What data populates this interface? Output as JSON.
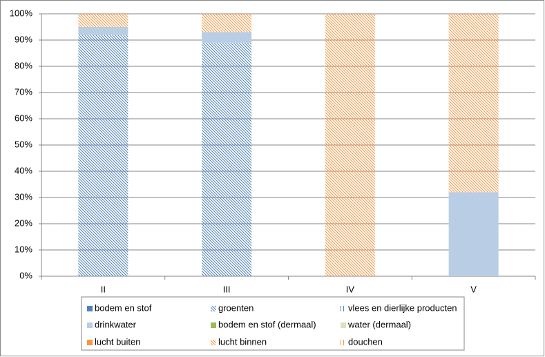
{
  "chart_data": {
    "type": "stacked_bar_percent",
    "categories": [
      "II",
      "III",
      "IV",
      "V"
    ],
    "series": [
      {
        "name": "bodem en stof",
        "color": "#4f81bd",
        "pattern": "solid",
        "values": [
          0,
          0,
          0,
          0
        ]
      },
      {
        "name": "groenten",
        "color": "#4f81bd",
        "pattern": "diagonal",
        "values": [
          92,
          89,
          0,
          0
        ]
      },
      {
        "name": "vlees en dierlijke producten",
        "color": "#4f81bd",
        "pattern": "vertical",
        "values": [
          0,
          0,
          0,
          0
        ]
      },
      {
        "name": "drinkwater",
        "color": "#b9cde5",
        "pattern": "solid",
        "values": [
          3,
          4,
          0,
          32
        ]
      },
      {
        "name": "bodem en stof (dermaal)",
        "color": "#9bbb59",
        "pattern": "solid",
        "values": [
          0,
          0,
          0,
          0
        ]
      },
      {
        "name": "water (dermaal)",
        "color": "#d7e4bd",
        "pattern": "solid",
        "values": [
          0,
          0,
          0,
          0
        ]
      },
      {
        "name": "lucht buiten",
        "color": "#f79646",
        "pattern": "solid",
        "values": [
          0,
          0,
          0,
          0
        ]
      },
      {
        "name": "lucht binnen",
        "color": "#f79646",
        "pattern": "diagonal",
        "values": [
          5,
          7,
          100,
          68
        ]
      },
      {
        "name": "douchen",
        "color": "#f79646",
        "pattern": "vertical",
        "values": [
          0,
          0,
          0,
          0
        ]
      }
    ],
    "ylim": [
      0,
      100
    ],
    "yticks": [
      {
        "value": 0,
        "label": "0%"
      },
      {
        "value": 10,
        "label": "10%"
      },
      {
        "value": 20,
        "label": "20%"
      },
      {
        "value": 30,
        "label": "30%"
      },
      {
        "value": 40,
        "label": "40%"
      },
      {
        "value": 50,
        "label": "50%"
      },
      {
        "value": 60,
        "label": "60%"
      },
      {
        "value": 70,
        "label": "70%"
      },
      {
        "value": 80,
        "label": "80%"
      },
      {
        "value": 90,
        "label": "90%"
      },
      {
        "value": 100,
        "label": "100%"
      }
    ],
    "grid": true,
    "legend": "bottom"
  }
}
